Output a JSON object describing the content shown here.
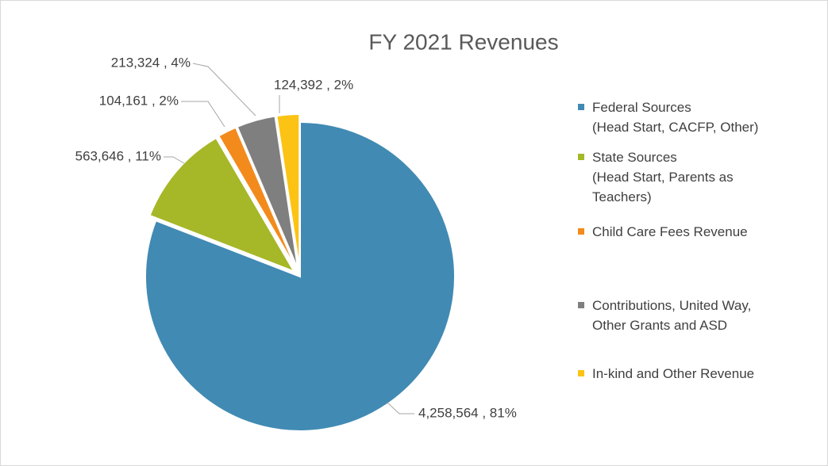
{
  "chart_data": {
    "type": "pie",
    "title": "FY 2021 Revenues",
    "categories": [
      "Federal Sources\n(Head Start, CACFP, Other)",
      "State Sources\n(Head Start, Parents as\nTeachers)",
      "Child Care Fees Revenue",
      "Contributions, United Way,\nOther Grants and ASD",
      "In-kind and Other Revenue"
    ],
    "values": [
      4258564,
      563646,
      104161,
      213324,
      124392
    ],
    "value_labels": [
      "4,258,564 , 81%",
      "563,646 , 11%",
      "104,161 , 2%",
      "213,324 , 4%",
      "124,392 , 2%"
    ],
    "colors": [
      "#418ab3",
      "#a6b727",
      "#f28b1c",
      "#7f7f7f",
      "#fcc314"
    ],
    "legend": "right"
  }
}
